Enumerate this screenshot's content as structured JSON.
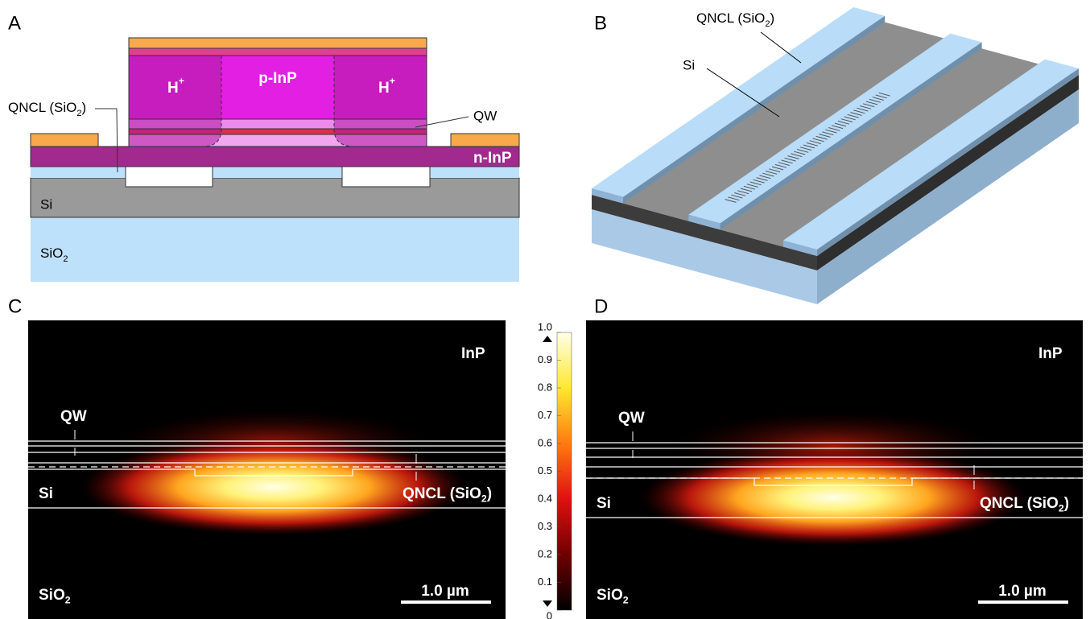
{
  "panel_a": {
    "label": "A",
    "h_left": {
      "text": "H",
      "sup": "+"
    },
    "p_inp": "p-InP",
    "h_right": {
      "text": "H",
      "sup": "+"
    },
    "qw": "QW",
    "qncl": {
      "text": "QNCL (SiO",
      "sub": "2",
      "tail": ")"
    },
    "n_inp": "n-InP",
    "si": "Si",
    "sio2": {
      "text": "SiO",
      "sub": "2"
    }
  },
  "panel_b": {
    "label": "B",
    "qncl": {
      "text": "QNCL (SiO",
      "sub": "2",
      "tail": ")"
    },
    "si": "Si"
  },
  "panel_c": {
    "label": "C",
    "inp": "InP",
    "qw": "QW",
    "si": "Si",
    "qncl": {
      "text": "QNCL (SiO",
      "sub": "2",
      "tail": ")"
    },
    "sio2": {
      "text": "SiO",
      "sub": "2"
    },
    "scale_bar": "1.0 µm"
  },
  "colorbar": {
    "ticks": [
      {
        "value": 0,
        "label": "0"
      },
      0.1,
      0.2,
      0.3,
      0.4,
      0.5,
      0.6,
      0.7,
      0.8,
      0.9,
      {
        "value": 1,
        "label": "1.0"
      }
    ]
  },
  "panel_d": {
    "label": "D",
    "inp": "InP",
    "qw": "QW",
    "si": "Si",
    "qncl": {
      "text": "QNCL (SiO",
      "sub": "2",
      "tail": ")"
    },
    "sio2": {
      "text": "SiO",
      "sub": "2"
    },
    "scale_bar": "1.0 µm"
  }
}
